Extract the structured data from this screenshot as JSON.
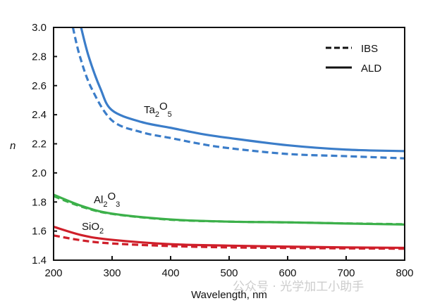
{
  "chart_data": {
    "type": "line",
    "title": "",
    "xlabel": "Wavelength, nm",
    "ylabel": "n",
    "xlim": [
      200,
      800
    ],
    "ylim": [
      1.4,
      3.0
    ],
    "xticks": [
      "200",
      "300",
      "400",
      "500",
      "600",
      "700",
      "800"
    ],
    "yticks": [
      "1.4",
      "1.6",
      "1.8",
      "2.0",
      "2.2",
      "2.4",
      "2.6",
      "2.8",
      "3.0"
    ],
    "grid": false,
    "legend": {
      "placement": "top-right",
      "entries": [
        {
          "label": "IBS",
          "style": "dashed"
        },
        {
          "label": "ALD",
          "style": "solid"
        }
      ]
    },
    "annotations": [
      {
        "base": "Ta",
        "sub1": "2",
        "mid": "O",
        "sub2": "5"
      },
      {
        "base": "Al",
        "sub1": "2",
        "mid": "O",
        "sub2": "3"
      },
      {
        "base": "SiO",
        "sub1": "2",
        "mid": "",
        "sub2": ""
      }
    ],
    "series": [
      {
        "material": "Ta2O5",
        "method": "ALD",
        "style": "solid",
        "color": "#3b7dc9",
        "x": [
          247,
          260,
          280,
          300,
          350,
          400,
          450,
          500,
          600,
          700,
          800
        ],
        "y": [
          3.0,
          2.8,
          2.58,
          2.43,
          2.35,
          2.31,
          2.27,
          2.24,
          2.19,
          2.16,
          2.15
        ]
      },
      {
        "material": "Ta2O5",
        "method": "IBS",
        "style": "dashed",
        "color": "#3b7dc9",
        "x": [
          233,
          245,
          265,
          300,
          350,
          400,
          450,
          500,
          600,
          700,
          800
        ],
        "y": [
          3.0,
          2.8,
          2.58,
          2.36,
          2.28,
          2.24,
          2.2,
          2.17,
          2.13,
          2.115,
          2.1
        ]
      },
      {
        "material": "Al2O3",
        "method": "ALD",
        "style": "solid",
        "color": "#3cb04a",
        "x": [
          200,
          250,
          300,
          400,
          500,
          600,
          700,
          800
        ],
        "y": [
          1.85,
          1.77,
          1.72,
          1.68,
          1.665,
          1.66,
          1.652,
          1.645
        ]
      },
      {
        "material": "Al2O3",
        "method": "IBS",
        "style": "dashed",
        "color": "#3cb04a",
        "x": [
          200,
          250,
          300,
          400,
          500,
          600,
          700,
          800
        ],
        "y": [
          1.84,
          1.765,
          1.718,
          1.678,
          1.665,
          1.66,
          1.653,
          1.647
        ]
      },
      {
        "material": "SiO2",
        "method": "ALD",
        "style": "solid",
        "color": "#cf1f2a",
        "x": [
          200,
          250,
          300,
          400,
          500,
          600,
          700,
          800
        ],
        "y": [
          1.63,
          1.57,
          1.54,
          1.51,
          1.5,
          1.493,
          1.488,
          1.485
        ]
      },
      {
        "material": "SiO2",
        "method": "IBS",
        "style": "dashed",
        "color": "#cf1f2a",
        "x": [
          200,
          250,
          300,
          400,
          500,
          600,
          700,
          800
        ],
        "y": [
          1.57,
          1.535,
          1.515,
          1.497,
          1.488,
          1.484,
          1.481,
          1.479
        ]
      }
    ]
  },
  "watermark": "公众号 · 光学加工小助手"
}
